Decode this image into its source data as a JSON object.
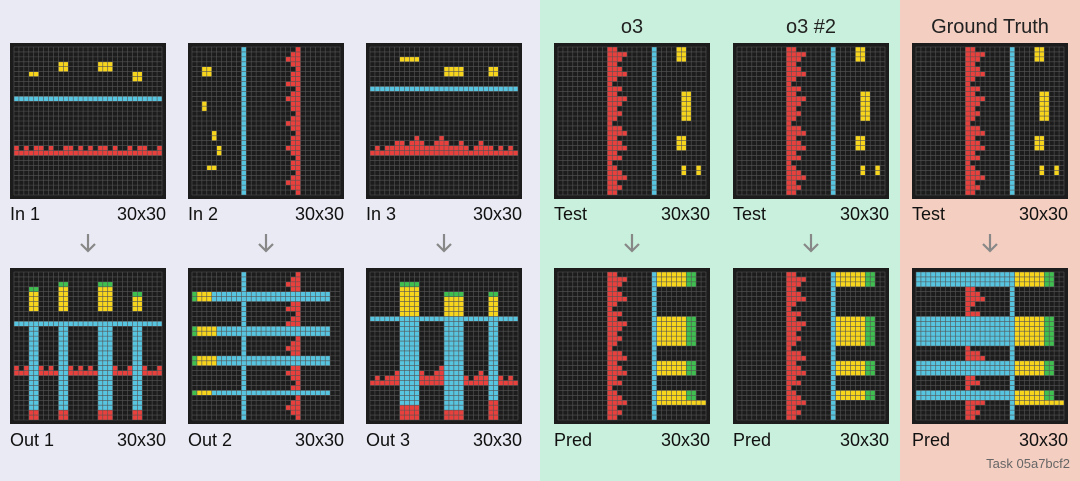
{
  "columns": {
    "model_a": "o3",
    "model_b": "o3 #2",
    "truth": "Ground Truth"
  },
  "panels": [
    {
      "id": "in1",
      "label": "In 1",
      "size": "30x30"
    },
    {
      "id": "in2",
      "label": "In 2",
      "size": "30x30"
    },
    {
      "id": "in3",
      "label": "In 3",
      "size": "30x30"
    },
    {
      "id": "test_a",
      "label": "Test",
      "size": "30x30"
    },
    {
      "id": "test_b",
      "label": "Test",
      "size": "30x30"
    },
    {
      "id": "test_gt",
      "label": "Test",
      "size": "30x30"
    },
    {
      "id": "out1",
      "label": "Out 1",
      "size": "30x30"
    },
    {
      "id": "out2",
      "label": "Out 2",
      "size": "30x30"
    },
    {
      "id": "out3",
      "label": "Out 3",
      "size": "30x30"
    },
    {
      "id": "pred_a",
      "label": "Pred",
      "size": "30x30"
    },
    {
      "id": "pred_b",
      "label": "Pred",
      "size": "30x30"
    },
    {
      "id": "pred_gt",
      "label": "Pred",
      "size": "30x30"
    }
  ],
  "task_label": "Task 05a7bcf2",
  "colors": {
    "background_cell": "#1c1c1c",
    "grid_line": "#555555",
    "red": "#e8403d",
    "yellow": "#f7d51d",
    "blue": "#57c4e0",
    "green": "#3fbf4f",
    "arrow": "#888888",
    "train_bg": "#e9eaf4",
    "model_bg": "#c9f0dc",
    "truth_bg": "#f4cfc1"
  }
}
